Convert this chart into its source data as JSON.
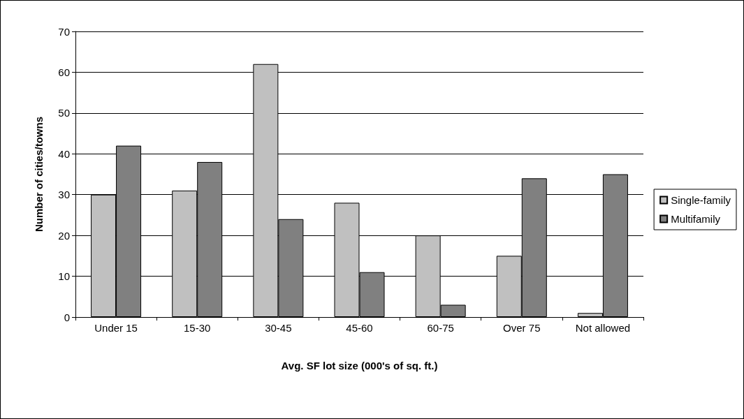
{
  "chart_data": {
    "type": "bar",
    "xlabel": "Avg. SF lot size (000's of sq. ft.)",
    "ylabel": "Number of cities/towns",
    "categories": [
      "Under 15",
      "15-30",
      "30-45",
      "45-60",
      "60-75",
      "Over 75",
      "Not allowed"
    ],
    "series": [
      {
        "name": "Single-family",
        "color": "#c0c0c0",
        "values": [
          30,
          31,
          62,
          28,
          20,
          15,
          1
        ]
      },
      {
        "name": "Multifamily",
        "color": "#808080",
        "values": [
          42,
          38,
          24,
          11,
          3,
          34,
          35
        ]
      }
    ],
    "ylim": [
      0,
      70
    ],
    "yticks": [
      0,
      10,
      20,
      30,
      40,
      50,
      60,
      70
    ],
    "grid": "y",
    "legend": "right"
  }
}
